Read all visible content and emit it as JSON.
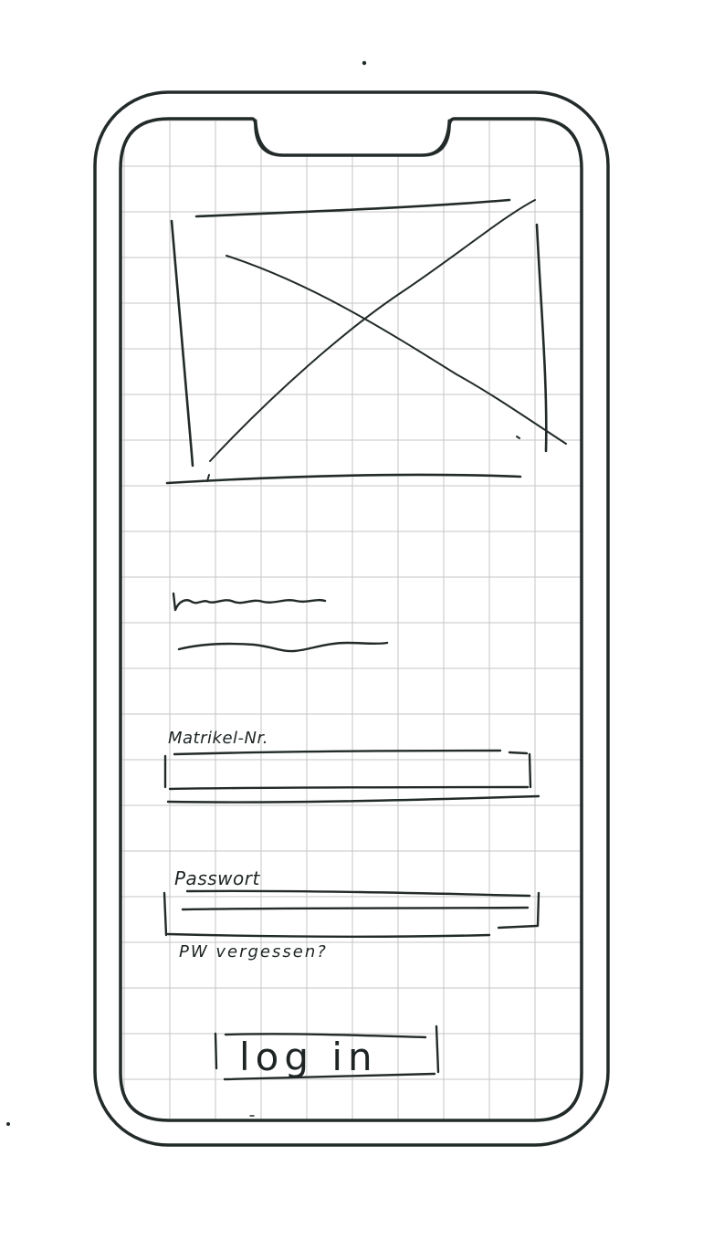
{
  "app": {
    "type": "hand-drawn mobile login wireframe",
    "ink_color": "#222a2a",
    "grid_color": "#c8c8c8",
    "background": "#ffffff"
  },
  "device": {
    "icon": "smartphone-outline"
  },
  "hero_image": {
    "icon": "image-placeholder-cross"
  },
  "placeholder_text": {
    "icon": "squiggle-text-lines"
  },
  "login_form": {
    "matrikel_label": "Matrikel-Nr.",
    "password_label": "Passwort",
    "forgot_password_link": "PW vergessen?",
    "login_button_label": "log in"
  }
}
